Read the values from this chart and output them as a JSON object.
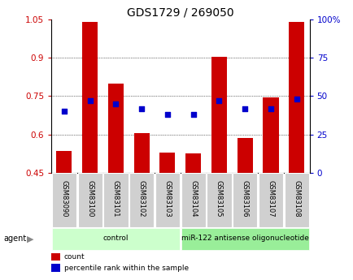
{
  "title": "GDS1729 / 269050",
  "samples": [
    "GSM83090",
    "GSM83100",
    "GSM83101",
    "GSM83102",
    "GSM83103",
    "GSM83104",
    "GSM83105",
    "GSM83106",
    "GSM83107",
    "GSM83108"
  ],
  "bar_values": [
    0.535,
    1.04,
    0.8,
    0.605,
    0.53,
    0.525,
    0.905,
    0.585,
    0.745,
    1.04
  ],
  "dot_values_pct": [
    40,
    47,
    45,
    42,
    38,
    38,
    47,
    42,
    42,
    48
  ],
  "ylim": [
    0.45,
    1.05
  ],
  "yticks_left": [
    0.45,
    0.6,
    0.75,
    0.9,
    1.05
  ],
  "yticks_right": [
    0,
    25,
    50,
    75,
    100
  ],
  "bar_color": "#cc0000",
  "dot_color": "#0000cc",
  "bar_bottom": 0.45,
  "groups": [
    {
      "label": "control",
      "start": 0,
      "end": 5,
      "color": "#ccffcc"
    },
    {
      "label": "miR-122 antisense oligonucleotide",
      "start": 5,
      "end": 10,
      "color": "#99ee99"
    }
  ],
  "agent_label": "agent",
  "legend_count_label": "count",
  "legend_pct_label": "percentile rank within the sample",
  "background_color": "#ffffff",
  "plot_bg": "#ffffff",
  "title_fontsize": 10,
  "tick_fontsize": 7.5,
  "label_fontsize": 7
}
